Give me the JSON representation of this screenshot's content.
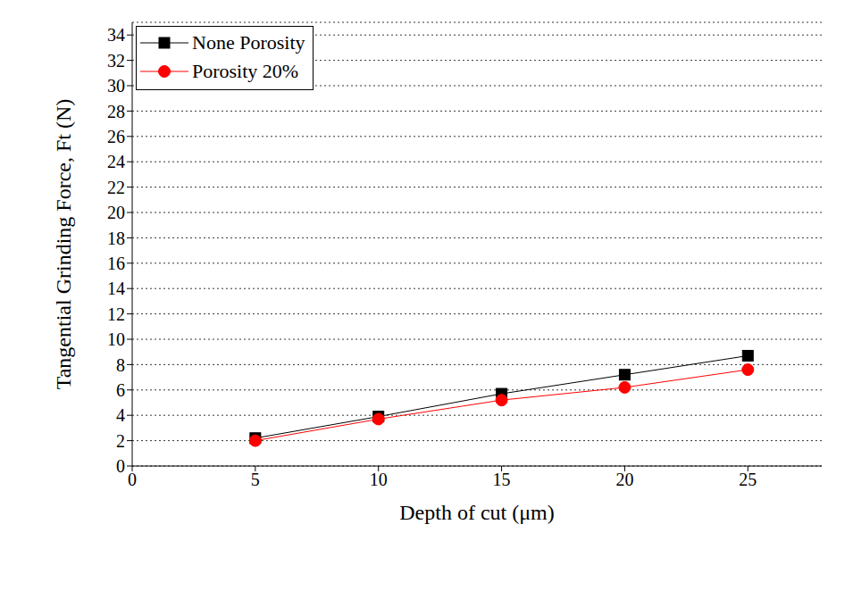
{
  "chart_data": {
    "type": "line",
    "x_label": "Depth of cut (μm)",
    "y_label": "Tangential Grinding Force, Ft (N)",
    "x": [
      5,
      10,
      15,
      20,
      25
    ],
    "series": [
      {
        "name": "None Porosity",
        "color": "#000000",
        "marker": "square",
        "values": [
          2.2,
          3.9,
          5.7,
          7.2,
          8.7
        ]
      },
      {
        "name": "Porosity 20%",
        "color": "#ff0000",
        "marker": "circle",
        "values": [
          2.0,
          3.7,
          5.2,
          6.2,
          7.6
        ]
      }
    ],
    "xlim": [
      0,
      28
    ],
    "xticks": [
      0,
      5,
      10,
      15,
      20,
      25
    ],
    "ylim": [
      0,
      35
    ],
    "yticks": [
      0,
      2,
      4,
      6,
      8,
      10,
      12,
      14,
      16,
      18,
      20,
      22,
      24,
      26,
      28,
      30,
      32,
      34
    ],
    "grid": true,
    "legend": "upper left"
  }
}
